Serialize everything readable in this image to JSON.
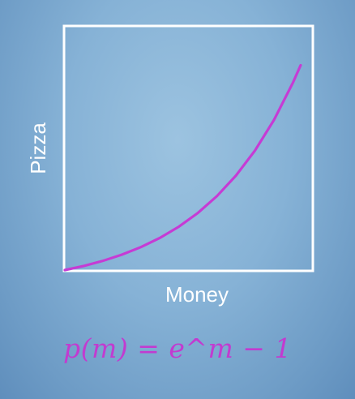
{
  "chart_data": {
    "type": "line",
    "title": "",
    "xlabel": "Money",
    "ylabel": "Pizza",
    "xlim": [
      0,
      2.6
    ],
    "ylim": [
      0,
      13
    ],
    "grid": false,
    "series": [
      {
        "function": "e^m - 1",
        "color": "#c63bd4",
        "x": [
          0,
          0.2,
          0.4,
          0.6,
          0.8,
          1.0,
          1.2,
          1.4,
          1.6,
          1.8,
          2.0,
          2.2,
          2.4,
          2.48
        ],
        "y": [
          0,
          0.221,
          0.492,
          0.822,
          1.226,
          1.718,
          2.32,
          3.055,
          3.953,
          5.05,
          6.389,
          8.025,
          10.023,
          10.942
        ]
      }
    ],
    "annotations": {
      "formula": "p(m) = e^m − 1"
    },
    "colors": {
      "frame": "#ffffff",
      "curve": "#c63bd4",
      "formula": "#c23bd0"
    }
  }
}
